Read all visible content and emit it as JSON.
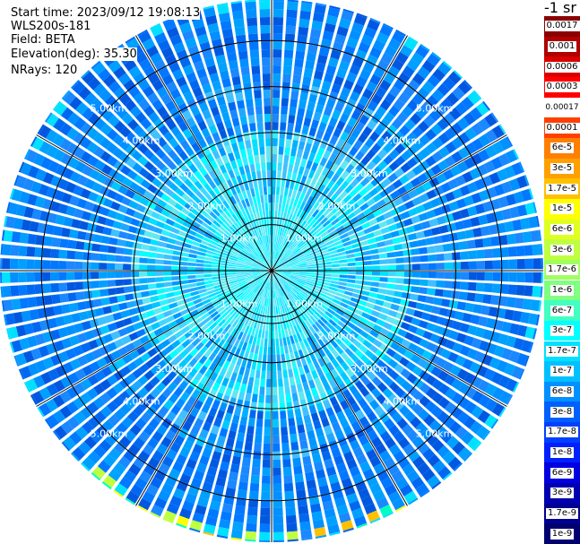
{
  "info": {
    "start_time": "Start time: 2023/09/12 19:08:13",
    "site": "WLS200s-181",
    "field": "Field: BETA",
    "elevation": "Elevation(deg): 35.30",
    "nrays": "NRays: 120"
  },
  "ppi": {
    "n_rays": 120,
    "max_range_km": 5.9,
    "ring_labels": [
      "1.00km",
      "2.00km",
      "3.00km",
      "4.00km",
      "5.00km"
    ],
    "ring_ranges_km": [
      1,
      2,
      3,
      4,
      5
    ],
    "colors": {
      "background": "#ffffff",
      "grid_lines": "#000000",
      "ray_gap": "#ffffff"
    }
  },
  "colorbar": {
    "title": "-1 sr",
    "labels": [
      "0.0017",
      "0.001",
      "0.0006",
      "0.0003",
      "0.00017",
      "0.0001",
      "6e-5",
      "3e-5",
      "1.7e-5",
      "1e-5",
      "6e-6",
      "3e-6",
      "1.7e-6",
      "1e-6",
      "6e-7",
      "3e-7",
      "1.7e-7",
      "1e-7",
      "6e-8",
      "3e-8",
      "1.7e-8",
      "1e-8",
      "6e-9",
      "3e-9",
      "1.7e-9",
      "1e-9"
    ],
    "colors": [
      "#8b0000",
      "#b00000",
      "#d80000",
      "#ff0000",
      "#ffffff",
      "#ff4000",
      "#ff8000",
      "#ffa000",
      "#ffc000",
      "#ffff00",
      "#e0ff20",
      "#c0ff40",
      "#a0ff60",
      "#80ff80",
      "#40ffc0",
      "#00ffff",
      "#00e0ff",
      "#00c0ff",
      "#0090ff",
      "#0060ff",
      "#0040ff",
      "#0020ff",
      "#0000e0",
      "#0000b0",
      "#000090",
      "#000070"
    ]
  }
}
